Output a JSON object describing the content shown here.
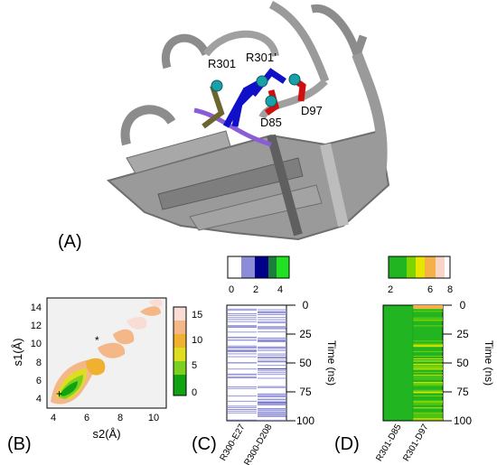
{
  "panels": {
    "A": {
      "label": "(A)",
      "residues": [
        "R301",
        "R301’",
        "D85",
        "D97"
      ]
    },
    "B": {
      "label": "(B)",
      "xlabel": "s2(Å)",
      "ylabel": "s1(Å)",
      "xticks": [
        "4",
        "6",
        "8",
        "10"
      ],
      "yticks": [
        "4",
        "6",
        "8",
        "10",
        "12",
        "14"
      ],
      "colorbar_ticks": [
        "15",
        "10",
        "5",
        "0"
      ]
    },
    "C": {
      "label": "(C)",
      "colorbar_ticks": [
        "0",
        "2",
        "4"
      ],
      "columns": [
        "R300-E27",
        "R300-D208"
      ]
    },
    "D": {
      "label": "(D)",
      "colorbar_ticks": [
        "2",
        "6",
        "8"
      ],
      "columns": [
        "R301-D85",
        "R301-D97"
      ]
    },
    "time_axis": {
      "label": "Time (ns)",
      "ticks": [
        "0",
        "25",
        "50",
        "75",
        "100"
      ]
    }
  },
  "colors": {
    "protein": "#8c8c8c",
    "blue_stick": "#1010c8",
    "red_stick": "#d01010",
    "olive_stick": "#6b6530",
    "purple_loop": "#8a5cd6",
    "atom": "#1aa0a8",
    "c_colormap": [
      "#ffffff",
      "#8c8cd8",
      "#00008b",
      "#1a7f3a",
      "#22e022"
    ],
    "d_colormap": [
      "#22b522",
      "#7fd400",
      "#e6e600",
      "#f5b04a",
      "#f9d5c8",
      "#ffffff"
    ],
    "b_colormap": [
      "#12a312",
      "#7ed020",
      "#dede20",
      "#f0b030",
      "#f4b888",
      "#f9dcd4"
    ]
  }
}
